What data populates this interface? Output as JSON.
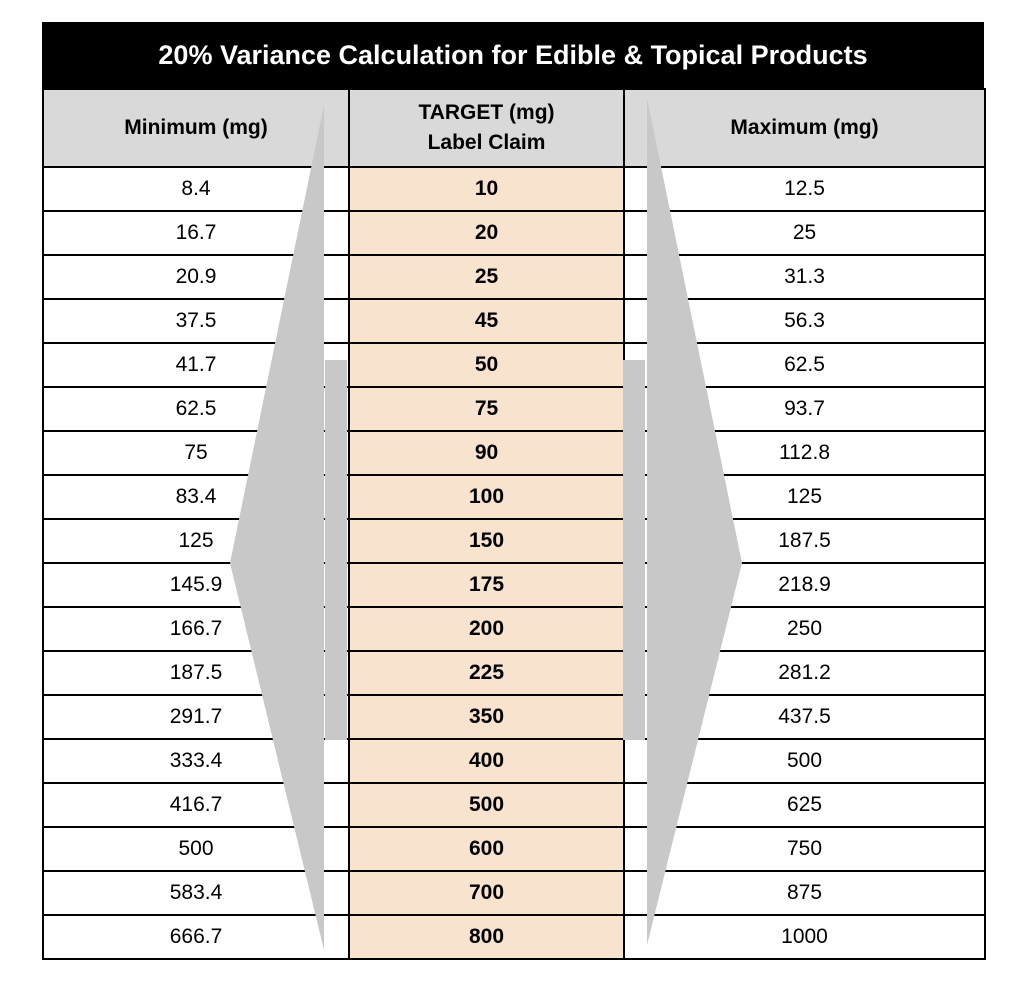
{
  "title": "20% Variance Calculation for Edible & Topical Products",
  "headers": {
    "minimum": "Minimum (mg)",
    "target_line1": "TARGET (mg)",
    "target_line2": "Label Claim",
    "maximum": "Maximum (mg)"
  },
  "rows": [
    {
      "min": "8.4",
      "target": "10",
      "max": "12.5"
    },
    {
      "min": "16.7",
      "target": "20",
      "max": "25"
    },
    {
      "min": "20.9",
      "target": "25",
      "max": "31.3"
    },
    {
      "min": "37.5",
      "target": "45",
      "max": "56.3"
    },
    {
      "min": "41.7",
      "target": "50",
      "max": "62.5"
    },
    {
      "min": "62.5",
      "target": "75",
      "max": "93.7"
    },
    {
      "min": "75",
      "target": "90",
      "max": "112.8"
    },
    {
      "min": "83.4",
      "target": "100",
      "max": "125"
    },
    {
      "min": "125",
      "target": "150",
      "max": "187.5"
    },
    {
      "min": "145.9",
      "target": "175",
      "max": "218.9"
    },
    {
      "min": "166.7",
      "target": "200",
      "max": "250"
    },
    {
      "min": "187.5",
      "target": "225",
      "max": "281.2"
    },
    {
      "min": "291.7",
      "target": "350",
      "max": "437.5"
    },
    {
      "min": "333.4",
      "target": "400",
      "max": "500"
    },
    {
      "min": "416.7",
      "target": "500",
      "max": "625"
    },
    {
      "min": "500",
      "target": "600",
      "max": "750"
    },
    {
      "min": "583.4",
      "target": "700",
      "max": "875"
    },
    {
      "min": "666.7",
      "target": "800",
      "max": "1000"
    }
  ],
  "colors": {
    "header_bg": "#d9d9d9",
    "title_bg": "#000000",
    "target_bg": "#f8e3cf",
    "arrow": "#c8c8c8"
  },
  "icons": [
    "left-arrow-icon",
    "right-arrow-icon"
  ]
}
